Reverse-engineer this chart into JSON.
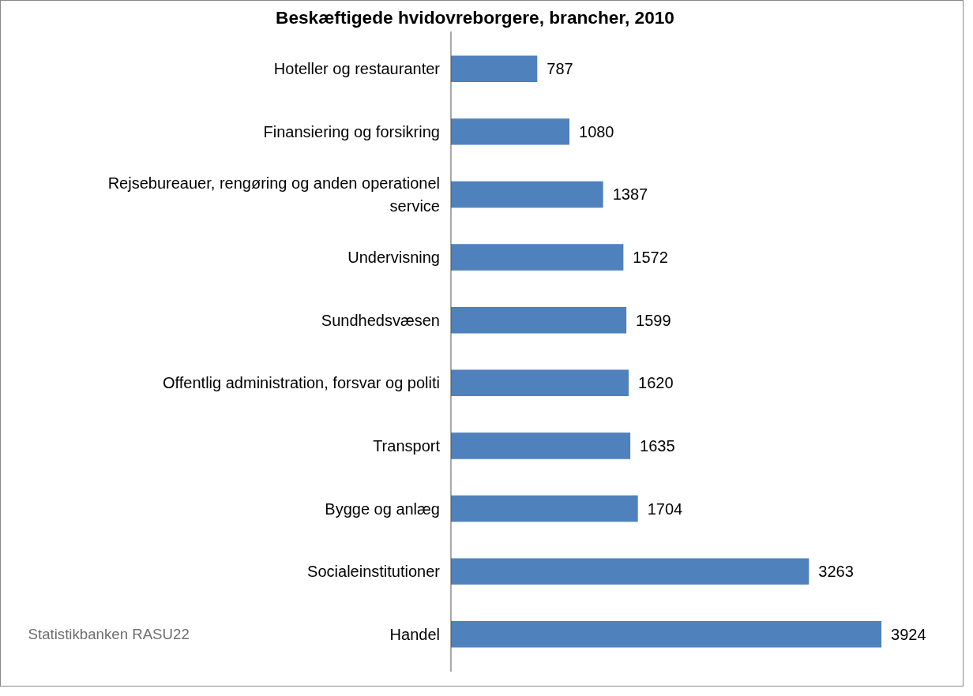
{
  "chart_data": {
    "type": "bar",
    "orientation": "horizontal",
    "title": "Beskæftigede hvidovreborgere, brancher, 2010",
    "categories": [
      "Hoteller og restauranter",
      "Finansiering og forsikring",
      "Rejsebureauer, rengøring og anden operationel service",
      "Undervisning",
      "Sundhedsvæsen",
      "Offentlig administration, forsvar og politi",
      "Transport",
      "Bygge og anlæg",
      "Socialeinstitutioner",
      "Handel"
    ],
    "values": [
      787,
      1080,
      1387,
      1572,
      1599,
      1620,
      1635,
      1704,
      3263,
      3924
    ],
    "color": "#4f81bd",
    "data_labels": true,
    "grid": false,
    "tick_labels": "y",
    "annotations": [
      "Statistikbanken RASU22"
    ]
  }
}
